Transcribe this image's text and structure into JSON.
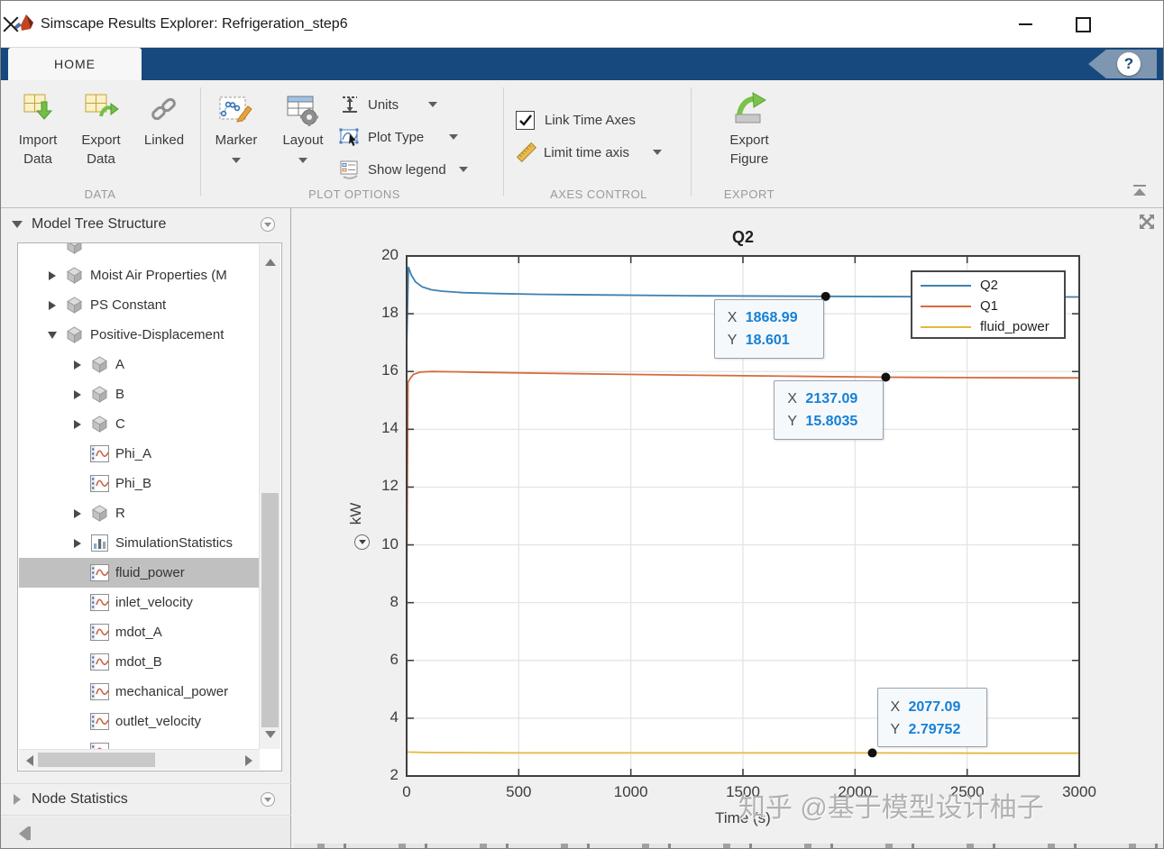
{
  "window": {
    "title": "Simscape Results Explorer: Refrigeration_step6"
  },
  "ribbon": {
    "home_tab": "HOME",
    "help": "?"
  },
  "toolbar": {
    "import_data": "Import Data",
    "export_data": "Export Data",
    "linked": "Linked",
    "marker": "Marker",
    "layout": "Layout",
    "units": "Units",
    "plot_type": "Plot Type",
    "show_legend": "Show legend",
    "link_time_axes": "Link Time Axes",
    "link_time_axes_checked": true,
    "limit_time_axis": "Limit time axis",
    "export_figure": "Export Figure",
    "groups": [
      {
        "label": "DATA"
      },
      {
        "label": "PLOT OPTIONS"
      },
      {
        "label": "AXES CONTROL"
      },
      {
        "label": "EXPORT"
      }
    ]
  },
  "sidebar": {
    "model_tree_header": "Model Tree Structure",
    "node_statistics_header": "Node Statistics",
    "tree": [
      {
        "label": "",
        "icon": "block",
        "expander": null,
        "depth": 1,
        "selected": false
      },
      {
        "label": "Moist Air Properties (M",
        "icon": "block",
        "expander": "collapsed",
        "depth": 1,
        "selected": false
      },
      {
        "label": "PS Constant",
        "icon": "block",
        "expander": "collapsed",
        "depth": 1,
        "selected": false
      },
      {
        "label": "Positive-Displacement",
        "icon": "block",
        "expander": "expanded",
        "depth": 1,
        "selected": false
      },
      {
        "label": "A",
        "icon": "block",
        "expander": "collapsed",
        "depth": 2,
        "selected": false
      },
      {
        "label": "B",
        "icon": "block",
        "expander": "collapsed",
        "depth": 2,
        "selected": false
      },
      {
        "label": "C",
        "icon": "block",
        "expander": "collapsed",
        "depth": 2,
        "selected": false
      },
      {
        "label": "Phi_A",
        "icon": "signal",
        "expander": null,
        "depth": 2,
        "selected": false
      },
      {
        "label": "Phi_B",
        "icon": "signal",
        "expander": null,
        "depth": 2,
        "selected": false
      },
      {
        "label": "R",
        "icon": "block",
        "expander": "collapsed",
        "depth": 2,
        "selected": false
      },
      {
        "label": "SimulationStatistics",
        "icon": "stats",
        "expander": "collapsed",
        "depth": 2,
        "selected": false
      },
      {
        "label": "fluid_power",
        "icon": "signal",
        "expander": null,
        "depth": 2,
        "selected": true
      },
      {
        "label": "inlet_velocity",
        "icon": "signal",
        "expander": null,
        "depth": 2,
        "selected": false
      },
      {
        "label": "mdot_A",
        "icon": "signal",
        "expander": null,
        "depth": 2,
        "selected": false
      },
      {
        "label": "mdot_B",
        "icon": "signal",
        "expander": null,
        "depth": 2,
        "selected": false
      },
      {
        "label": "mechanical_power",
        "icon": "signal",
        "expander": null,
        "depth": 2,
        "selected": false
      },
      {
        "label": "outlet_velocity",
        "icon": "signal",
        "expander": null,
        "depth": 2,
        "selected": false
      },
      {
        "label": "",
        "icon": "signal",
        "expander": null,
        "depth": 2,
        "selected": false
      }
    ]
  },
  "chart_data": {
    "type": "line",
    "title": "Q2",
    "xlabel": "Time (s)",
    "ylabel": "kW",
    "xlim": [
      0,
      3000
    ],
    "ylim": [
      2,
      20
    ],
    "x_ticks": [
      0,
      500,
      1000,
      1500,
      2000,
      2500,
      3000
    ],
    "y_ticks": [
      2,
      4,
      6,
      8,
      10,
      12,
      14,
      16,
      18,
      20
    ],
    "grid": true,
    "legend_position": "top-right",
    "series": [
      {
        "name": "Q2",
        "color": "#3D81B0",
        "points": [
          [
            0,
            16.8
          ],
          [
            8,
            19.62
          ],
          [
            20,
            19.35
          ],
          [
            40,
            19.1
          ],
          [
            70,
            18.93
          ],
          [
            110,
            18.83
          ],
          [
            160,
            18.78
          ],
          [
            250,
            18.73
          ],
          [
            400,
            18.7
          ],
          [
            600,
            18.67
          ],
          [
            900,
            18.65
          ],
          [
            1300,
            18.62
          ],
          [
            1868.99,
            18.601
          ],
          [
            2300,
            18.59
          ],
          [
            2700,
            18.585
          ],
          [
            3000,
            18.58
          ]
        ]
      },
      {
        "name": "Q1",
        "color": "#D66A3F",
        "points": [
          [
            0,
            8.3
          ],
          [
            6,
            15.62
          ],
          [
            15,
            15.75
          ],
          [
            30,
            15.9
          ],
          [
            60,
            15.98
          ],
          [
            110,
            16.0
          ],
          [
            200,
            15.99
          ],
          [
            350,
            15.97
          ],
          [
            600,
            15.94
          ],
          [
            900,
            15.91
          ],
          [
            1300,
            15.87
          ],
          [
            1700,
            15.84
          ],
          [
            2137.09,
            15.8035
          ],
          [
            2500,
            15.79
          ],
          [
            3000,
            15.78
          ]
        ]
      },
      {
        "name": "fluid_power",
        "color": "#E5B73F",
        "points": [
          [
            0,
            2.83
          ],
          [
            100,
            2.81
          ],
          [
            500,
            2.8
          ],
          [
            1000,
            2.8
          ],
          [
            1500,
            2.8
          ],
          [
            2077.09,
            2.79752
          ],
          [
            2600,
            2.79
          ],
          [
            3000,
            2.79
          ]
        ]
      }
    ],
    "tip_labels": {
      "x": "X",
      "y": "Y"
    },
    "datatips": [
      {
        "x": 1868.99,
        "y": 18.601,
        "x_text": "1868.99",
        "y_text": "18.601",
        "anchor": "top-right"
      },
      {
        "x": 2137.09,
        "y": 15.8035,
        "x_text": "2137.09",
        "y_text": "15.8035",
        "anchor": "top-right"
      },
      {
        "x": 2077.09,
        "y": 2.79752,
        "x_text": "2077.09",
        "y_text": "2.79752",
        "anchor": "bottom-left"
      }
    ]
  },
  "watermark": "知乎 @基于模型设计柚子"
}
